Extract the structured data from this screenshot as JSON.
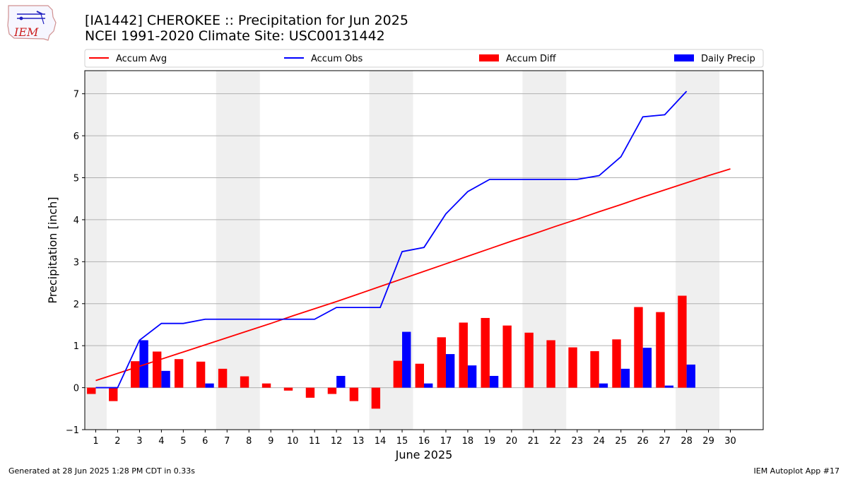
{
  "header": {
    "title_line1": "[IA1442] CHEROKEE :: Precipitation for Jun 2025",
    "title_line2": "NCEI 1991-2020 Climate Site: USC00131442"
  },
  "logo": {
    "text": "IEM"
  },
  "footer": {
    "generated": "Generated at 28 Jun 2025 1:28 PM CDT in 0.33s",
    "app": "IEM Autoplot App #17"
  },
  "chart_data": {
    "type": "bar",
    "xlabel": "June 2025",
    "ylabel": "Precipitation [inch]",
    "ylim": [
      -1,
      7.55
    ],
    "xlim": [
      0.5,
      31.5
    ],
    "yticks": [
      -1,
      0,
      1,
      2,
      3,
      4,
      5,
      6,
      7
    ],
    "days": [
      1,
      2,
      3,
      4,
      5,
      6,
      7,
      8,
      9,
      10,
      11,
      12,
      13,
      14,
      15,
      16,
      17,
      18,
      19,
      20,
      21,
      22,
      23,
      24,
      25,
      26,
      27,
      28,
      29,
      30
    ],
    "weekend_spans": [
      [
        0.5,
        1.5
      ],
      [
        6.5,
        8.5
      ],
      [
        13.5,
        15.5
      ],
      [
        20.5,
        22.5
      ],
      [
        27.5,
        29.5
      ]
    ],
    "grid": "horizontal",
    "legend_placement": "top, above plot",
    "series": [
      {
        "name": "Accum Avg",
        "kind": "line",
        "color": "#ff0000",
        "values": [
          0.17,
          0.34,
          0.51,
          0.68,
          0.85,
          1.02,
          1.19,
          1.36,
          1.53,
          1.71,
          1.88,
          2.05,
          2.23,
          2.41,
          2.59,
          2.77,
          2.95,
          3.13,
          3.31,
          3.49,
          3.66,
          3.84,
          4.01,
          4.19,
          4.36,
          4.54,
          4.71,
          4.88,
          5.05,
          5.21
        ]
      },
      {
        "name": "Accum Obs",
        "kind": "line",
        "color": "#0000ff",
        "values": [
          0,
          0,
          1.13,
          1.53,
          1.53,
          1.63,
          1.63,
          1.63,
          1.63,
          1.63,
          1.63,
          1.91,
          1.91,
          1.91,
          3.24,
          3.34,
          4.14,
          4.67,
          4.96,
          4.96,
          4.96,
          4.96,
          4.96,
          5.05,
          5.5,
          6.45,
          6.5,
          7.06
        ]
      },
      {
        "name": "Accum Diff",
        "kind": "bar",
        "color": "#ff0000",
        "values": [
          -0.15,
          -0.32,
          0.63,
          0.86,
          0.68,
          0.62,
          0.45,
          0.27,
          0.1,
          -0.07,
          -0.24,
          -0.15,
          -0.32,
          -0.5,
          0.64,
          0.57,
          1.2,
          1.55,
          1.66,
          1.48,
          1.31,
          1.13,
          0.96,
          0.87,
          1.15,
          1.92,
          1.8,
          2.19
        ]
      },
      {
        "name": "Daily Precip",
        "kind": "bar",
        "color": "#0000ff",
        "values": [
          0,
          0,
          1.13,
          0.4,
          0,
          0.1,
          0,
          0,
          0,
          0,
          0,
          0.28,
          0,
          0,
          1.33,
          0.1,
          0.8,
          0.53,
          0.28,
          0,
          0,
          0,
          0,
          0.1,
          0.45,
          0.95,
          0.05,
          0.55
        ]
      }
    ]
  }
}
